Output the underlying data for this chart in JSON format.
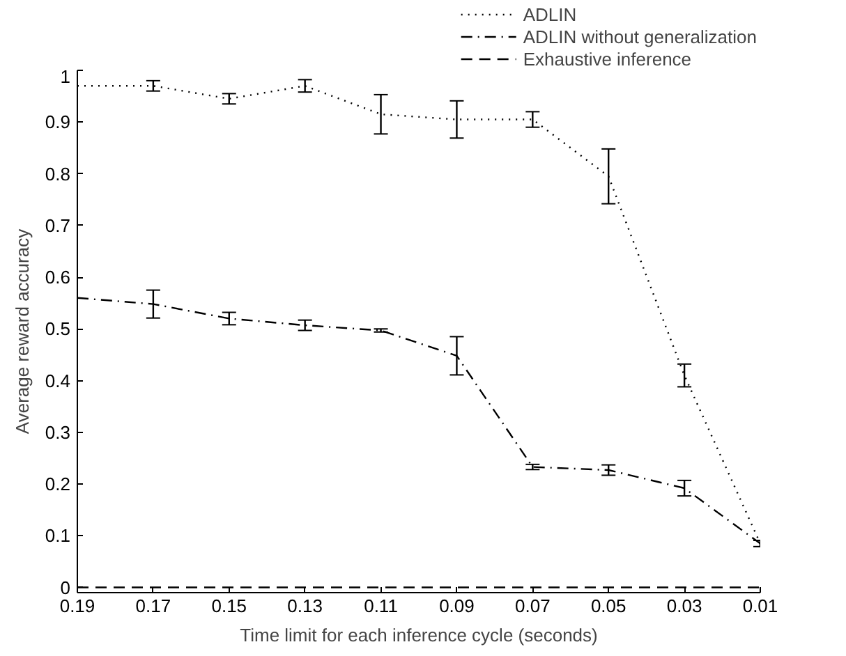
{
  "chart_data": {
    "type": "line",
    "xlabel": "Time limit for each inference cycle (seconds)",
    "ylabel": "Average reward accuracy",
    "x": [
      0.19,
      0.17,
      0.15,
      0.13,
      0.11,
      0.09,
      0.07,
      0.05,
      0.03,
      0.01
    ],
    "xlim": [
      0.19,
      0.01
    ],
    "xticks": [
      0.19,
      0.17,
      0.15,
      0.13,
      0.11,
      0.09,
      0.07,
      0.05,
      0.03,
      0.01
    ],
    "ylim": [
      -0.01,
      1
    ],
    "yticks": [
      0,
      0.1,
      0.2,
      0.3,
      0.4,
      0.5,
      0.6,
      0.7,
      0.8,
      0.9,
      1
    ],
    "grid": false,
    "legend": "top right",
    "marker": "none",
    "series": [
      {
        "name": "ADLIN",
        "color": "#000000",
        "line_style": "dotted",
        "values": [
          0.97,
          0.97,
          0.945,
          0.97,
          0.915,
          0.905,
          0.905,
          0.795,
          0.41,
          0.085
        ],
        "errors": [
          null,
          0.01,
          0.01,
          0.012,
          0.038,
          0.036,
          0.015,
          0.053,
          0.022,
          0.006
        ]
      },
      {
        "name": "ADLIN without generalization",
        "color": "#000000",
        "line_style": "dashdot",
        "values": [
          0.56,
          0.548,
          0.52,
          0.507,
          0.497,
          0.448,
          0.233,
          0.227,
          0.192,
          0.085
        ],
        "errors": [
          null,
          0.027,
          0.012,
          0.01,
          0.003,
          0.037,
          0.005,
          0.01,
          0.015,
          0.006
        ]
      },
      {
        "name": "Exhaustive inference",
        "color": "#000000",
        "line_style": "dashed",
        "values": [
          0,
          0,
          0,
          0,
          0,
          0,
          0,
          0,
          0,
          0
        ]
      }
    ]
  }
}
